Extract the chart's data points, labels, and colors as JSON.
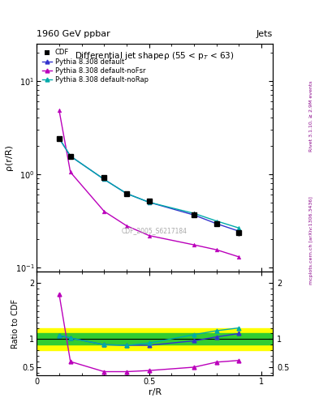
{
  "title_top": "1960 GeV ppbar",
  "title_top_right": "Jets",
  "plot_title": "Differential jet shapeρ (55 < p_{T} < 63)",
  "ylabel_main": "ρ(r/R)",
  "ylabel_ratio": "Ratio to CDF",
  "xlabel": "r/R",
  "right_label_top": "Rivet 3.1.10, ≥ 2.9M events",
  "right_label_bot": "mcplots.cern.ch [arXiv:1306.3436]",
  "watermark": "CDF_2005_S6217184",
  "x": [
    0.1,
    0.15,
    0.3,
    0.4,
    0.5,
    0.7,
    0.8,
    0.9
  ],
  "cdf_y": [
    2.4,
    1.55,
    0.92,
    0.62,
    0.52,
    0.37,
    0.295,
    0.235
  ],
  "cdf_err": [
    0.12,
    0.08,
    0.05,
    0.04,
    0.03,
    0.025,
    0.02,
    0.015
  ],
  "pythia_default_y": [
    2.42,
    1.56,
    0.88,
    0.62,
    0.5,
    0.365,
    0.295,
    0.245
  ],
  "pythia_nofsr_y": [
    4.8,
    1.05,
    0.4,
    0.28,
    0.22,
    0.175,
    0.155,
    0.13
  ],
  "pythia_norap_y": [
    2.42,
    1.56,
    0.88,
    0.62,
    0.5,
    0.38,
    0.315,
    0.265
  ],
  "ratio_default_y": [
    1.06,
    1.02,
    0.9,
    0.89,
    0.89,
    0.97,
    1.04,
    1.1
  ],
  "ratio_nofsr_y": [
    1.8,
    0.6,
    0.42,
    0.42,
    0.44,
    0.5,
    0.59,
    0.62
  ],
  "ratio_norap_y": [
    1.07,
    1.02,
    0.9,
    0.89,
    0.93,
    1.08,
    1.15,
    1.2
  ],
  "green_band_lo": 0.9,
  "green_band_hi": 1.1,
  "yellow_band_lo": 0.8,
  "yellow_band_hi": 1.2,
  "color_cdf": "#000000",
  "color_default": "#3333cc",
  "color_nofsr": "#bb00bb",
  "color_norap": "#00aaaa",
  "ylim_main": [
    0.09,
    25
  ],
  "ylim_ratio": [
    0.35,
    2.2
  ],
  "xticks": [
    0,
    0.5,
    1.0
  ],
  "xtick_labels": [
    "0",
    "0.5",
    "1"
  ]
}
